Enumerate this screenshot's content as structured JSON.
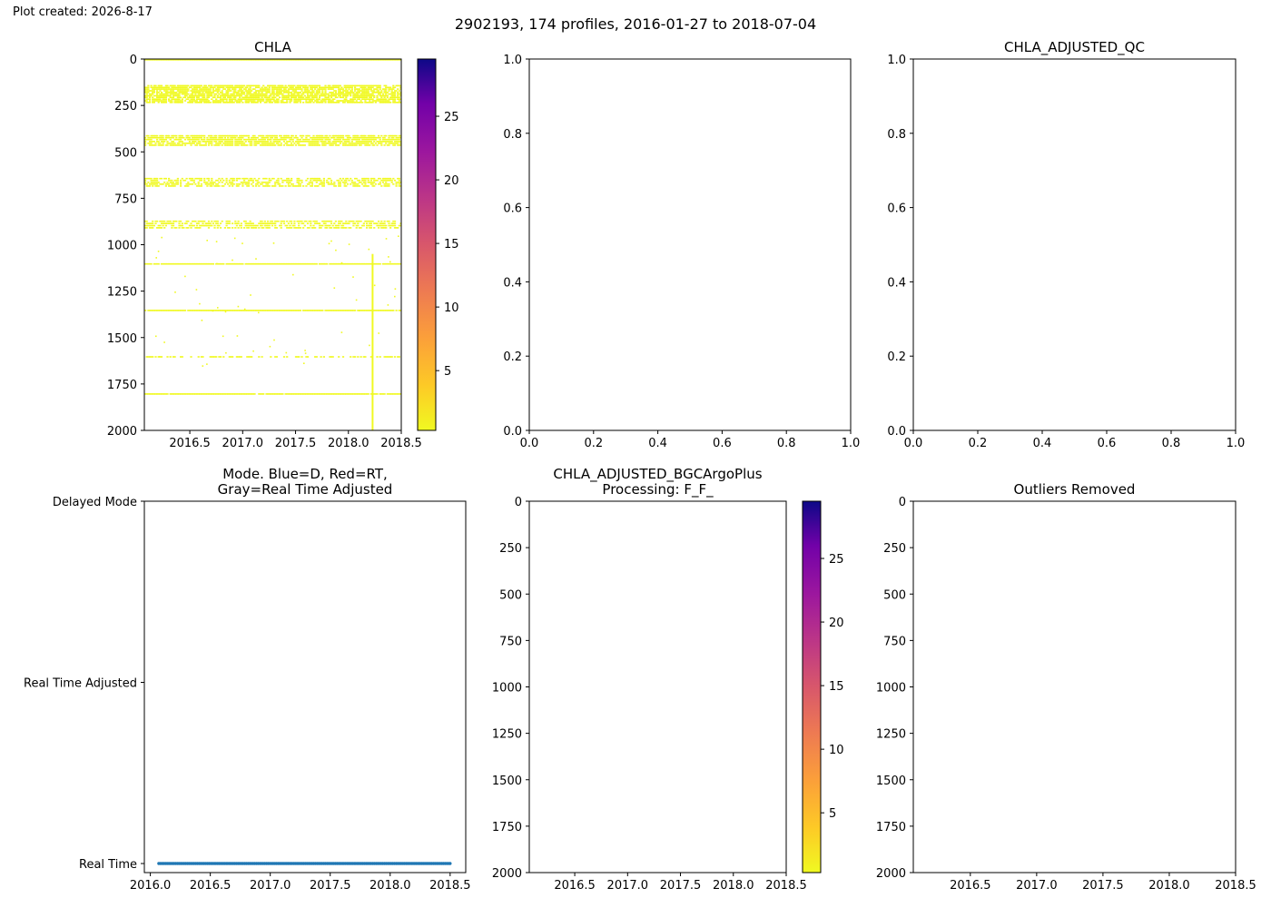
{
  "header": {
    "plot_created": "Plot created: 2026-8-17",
    "suptitle": "2902193, 174 profiles, 2016-01-27 to 2018-07-04"
  },
  "colors": {
    "cmap_low": "#f0f921",
    "cmap_high": "#0d0887",
    "mode_dots": "#1f77b4",
    "data_pixels": "#f0f921"
  },
  "chart_data": [
    {
      "type": "heatmap",
      "title": "CHLA",
      "x_ticks": [
        "2016.5",
        "2017.0",
        "2017.5",
        "2018.0",
        "2018.5"
      ],
      "x_tick_values": [
        2016.5,
        2017.0,
        2017.5,
        2018.0,
        2018.5
      ],
      "xlim": [
        2016.07,
        2018.5
      ],
      "y_ticks": [
        "0",
        "250",
        "500",
        "750",
        "1000",
        "1250",
        "1500",
        "1750",
        "2000"
      ],
      "y_tick_values": [
        0,
        250,
        500,
        750,
        1000,
        1250,
        1500,
        1750,
        2000
      ],
      "ylim": [
        2000,
        0
      ],
      "colorbar": {
        "cmap": "plasma_r",
        "range": [
          0.3,
          29.5
        ],
        "ticks": [
          "5",
          "10",
          "15",
          "20",
          "25"
        ],
        "tick_values": [
          5,
          10,
          15,
          20,
          25
        ]
      },
      "observed_value_approx": 0.3,
      "depth_bands": [
        {
          "from": 0,
          "to": 5,
          "density": "solid"
        },
        {
          "from": 140,
          "to": 230,
          "density": "dense"
        },
        {
          "from": 410,
          "to": 460,
          "density": "dense"
        },
        {
          "from": 640,
          "to": 680,
          "density": "medium"
        },
        {
          "from": 870,
          "to": 905,
          "density": "medium"
        },
        {
          "from": 1100,
          "to": 1104,
          "density": "line"
        },
        {
          "from": 1350,
          "to": 1354,
          "density": "line"
        },
        {
          "from": 1600,
          "to": 1604,
          "density": "sparse"
        },
        {
          "from": 1800,
          "to": 1804,
          "density": "line"
        }
      ],
      "vertical_streak": {
        "x": 2018.22,
        "from_depth": 1050,
        "to_depth": 2000
      }
    },
    {
      "type": "scatter",
      "title": "",
      "empty": true,
      "x_ticks": [
        "0.0",
        "0.2",
        "0.4",
        "0.6",
        "0.8",
        "1.0"
      ],
      "x_tick_values": [
        0,
        0.2,
        0.4,
        0.6,
        0.8,
        1.0
      ],
      "y_ticks": [
        "0.0",
        "0.2",
        "0.4",
        "0.6",
        "0.8",
        "1.0"
      ],
      "y_tick_values": [
        0,
        0.2,
        0.4,
        0.6,
        0.8,
        1.0
      ],
      "xlim": [
        0,
        1
      ],
      "ylim": [
        0,
        1
      ]
    },
    {
      "type": "scatter",
      "title": "CHLA_ADJUSTED_QC",
      "empty": true,
      "x_ticks": [
        "0.0",
        "0.2",
        "0.4",
        "0.6",
        "0.8",
        "1.0"
      ],
      "x_tick_values": [
        0,
        0.2,
        0.4,
        0.6,
        0.8,
        1.0
      ],
      "y_ticks": [
        "0.0",
        "0.2",
        "0.4",
        "0.6",
        "0.8",
        "1.0"
      ],
      "y_tick_values": [
        0,
        0.2,
        0.4,
        0.6,
        0.8,
        1.0
      ],
      "xlim": [
        0,
        1
      ],
      "ylim": [
        0,
        1
      ]
    },
    {
      "type": "scatter",
      "title": "Mode. Blue=D, Red=RT,\nGray=Real Time Adjusted",
      "x_ticks": [
        "2016.0",
        "2016.5",
        "2017.0",
        "2017.5",
        "2018.0",
        "2018.5"
      ],
      "x_tick_values": [
        2016.0,
        2016.5,
        2017.0,
        2017.5,
        2018.0,
        2018.5
      ],
      "xlim": [
        2015.95,
        2018.63
      ],
      "y_ticks": [
        "Delayed Mode",
        "Real Time Adjusted",
        "Real Time"
      ],
      "y_tick_values": [
        2,
        1,
        0
      ],
      "ylim": [
        -0.05,
        2
      ],
      "series": [
        {
          "mode": "Real Time",
          "y": 0,
          "x_start": 2016.07,
          "x_end": 2018.5,
          "count": 174
        }
      ]
    },
    {
      "type": "heatmap",
      "title": "CHLA_ADJUSTED_BGCArgoPlus\nProcessing: F_F_",
      "empty": true,
      "x_ticks": [
        "2016.5",
        "2017.0",
        "2017.5",
        "2018.0",
        "2018.5"
      ],
      "x_tick_values": [
        2016.5,
        2017.0,
        2017.5,
        2018.0,
        2018.5
      ],
      "xlim": [
        2016.07,
        2018.5
      ],
      "y_ticks": [
        "0",
        "250",
        "500",
        "750",
        "1000",
        "1250",
        "1500",
        "1750",
        "2000"
      ],
      "y_tick_values": [
        0,
        250,
        500,
        750,
        1000,
        1250,
        1500,
        1750,
        2000
      ],
      "ylim": [
        2000,
        0
      ],
      "colorbar": {
        "cmap": "plasma_r",
        "range": [
          0.3,
          29.5
        ],
        "ticks": [
          "5",
          "10",
          "15",
          "20",
          "25"
        ],
        "tick_values": [
          5,
          10,
          15,
          20,
          25
        ]
      }
    },
    {
      "type": "heatmap",
      "title": "Outliers Removed",
      "empty": true,
      "x_ticks": [
        "2016.5",
        "2017.0",
        "2017.5",
        "2018.0",
        "2018.5"
      ],
      "x_tick_values": [
        2016.5,
        2017.0,
        2017.5,
        2018.0,
        2018.5
      ],
      "xlim": [
        2016.07,
        2018.5
      ],
      "y_ticks": [
        "0",
        "250",
        "500",
        "750",
        "1000",
        "1250",
        "1500",
        "1750",
        "2000"
      ],
      "y_tick_values": [
        0,
        250,
        500,
        750,
        1000,
        1250,
        1500,
        1750,
        2000
      ],
      "ylim": [
        2000,
        0
      ]
    }
  ]
}
